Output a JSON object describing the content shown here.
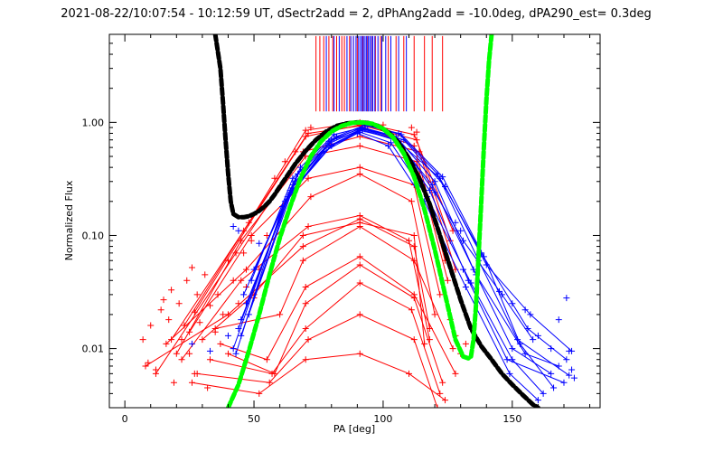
{
  "chart_data": {
    "type": "line",
    "title": "2021-08-22/10:07:54 - 10:12:59 UT, dSectr2add = 2, dPhAng2add = -10.0deg, dPA290_est=  0.3deg",
    "xlabel": "PA [deg]",
    "ylabel": "Normalized Flux",
    "xlim": [
      -6,
      184
    ],
    "ylim": [
      0.003,
      6.0
    ],
    "yscale": "log",
    "xticks": [
      0,
      50,
      100,
      150
    ],
    "xtick_labels": [
      "0",
      "50",
      "100",
      "150"
    ],
    "yticks": [
      0.01,
      0.1,
      1.0
    ],
    "ytick_labels": [
      "0.01",
      "0.10",
      "1.00"
    ],
    "grid": false,
    "legend": "none",
    "colors": {
      "red": "#ff0000",
      "blue": "#0000ff",
      "black_fit": "#000000",
      "green_fit": "#00ff00",
      "axes": "#000000",
      "background": "#ffffff"
    },
    "series": [
      {
        "color": "red",
        "style": "spectra-lines",
        "curves": [
          {
            "x": [
              23,
              48,
              70,
              91,
              112,
              127
            ],
            "y": [
              0.016,
              0.13,
              0.85,
              1.0,
              0.78,
              0.11
            ]
          },
          {
            "x": [
              18,
              46,
              70,
              91,
              113,
              126
            ],
            "y": [
              0.012,
              0.11,
              0.75,
              0.95,
              0.7,
              0.09
            ]
          },
          {
            "x": [
              27,
              51,
              71,
              91,
              112,
              124
            ],
            "y": [
              0.021,
              0.16,
              0.8,
              0.93,
              0.62,
              0.06
            ]
          },
          {
            "x": [
              12,
              43,
              69,
              91,
              114,
              128
            ],
            "y": [
              0.006,
              0.07,
              0.55,
              0.75,
              0.55,
              0.05
            ]
          },
          {
            "x": [
              20,
              45,
              70,
              91,
              113,
              125
            ],
            "y": [
              0.009,
              0.09,
              0.5,
              0.62,
              0.45,
              0.04
            ]
          },
          {
            "x": [
              25,
              49,
              71,
              91,
              112,
              122
            ],
            "y": [
              0.014,
              0.1,
              0.32,
              0.4,
              0.28,
              0.03
            ]
          },
          {
            "x": [
              16,
              47,
              72,
              91,
              111,
              120
            ],
            "y": [
              0.011,
              0.05,
              0.22,
              0.35,
              0.2,
              0.02
            ]
          },
          {
            "x": [
              22,
              45,
              71,
              91,
              110,
              118
            ],
            "y": [
              0.008,
              0.04,
              0.12,
              0.15,
              0.09,
              0.012
            ]
          },
          {
            "x": [
              8,
              40,
              69,
              91,
              112,
              118
            ],
            "y": [
              0.007,
              0.02,
              0.08,
              0.14,
              0.08,
              0.015
            ]
          },
          {
            "x": [
              30,
              50,
              69,
              91,
              112,
              116
            ],
            "y": [
              0.012,
              0.03,
              0.1,
              0.13,
              0.1,
              0.011
            ]
          },
          {
            "x": [
              35,
              60,
              69,
              91,
              112,
              127
            ],
            "y": [
              0.015,
              0.02,
              0.06,
              0.12,
              0.06,
              0.01
            ]
          },
          {
            "x": [
              37,
              55,
              70,
              91,
              112,
              128
            ],
            "y": [
              0.011,
              0.008,
              0.035,
              0.065,
              0.03,
              0.006
            ]
          },
          {
            "x": [
              40,
              58,
              70,
              91,
              112,
              123
            ],
            "y": [
              0.009,
              0.006,
              0.025,
              0.055,
              0.028,
              0.005
            ]
          },
          {
            "x": [
              33,
              57,
              70,
              91,
              111,
              122
            ],
            "y": [
              0.008,
              0.006,
              0.015,
              0.038,
              0.022,
              0.004
            ]
          },
          {
            "x": [
              28,
              56,
              71,
              91,
              112,
              121
            ],
            "y": [
              0.006,
              0.005,
              0.012,
              0.02,
              0.012,
              0.003
            ]
          },
          {
            "x": [
              26,
              52,
              70,
              91,
              110,
              124
            ],
            "y": [
              0.005,
              0.004,
              0.008,
              0.009,
              0.006,
              0.0035
            ]
          }
        ],
        "scatter": [
          {
            "x": 7,
            "y": 0.012
          },
          {
            "x": 9,
            "y": 0.0075
          },
          {
            "x": 10,
            "y": 0.016
          },
          {
            "x": 12,
            "y": 0.0065
          },
          {
            "x": 14,
            "y": 0.022
          },
          {
            "x": 15,
            "y": 0.027
          },
          {
            "x": 17,
            "y": 0.018
          },
          {
            "x": 18,
            "y": 0.033
          },
          {
            "x": 19,
            "y": 0.005
          },
          {
            "x": 21,
            "y": 0.025
          },
          {
            "x": 22,
            "y": 0.012
          },
          {
            "x": 24,
            "y": 0.04
          },
          {
            "x": 25,
            "y": 0.009
          },
          {
            "x": 26,
            "y": 0.052
          },
          {
            "x": 27,
            "y": 0.006
          },
          {
            "x": 28,
            "y": 0.03
          },
          {
            "x": 29,
            "y": 0.017
          },
          {
            "x": 31,
            "y": 0.045
          },
          {
            "x": 32,
            "y": 0.0045
          },
          {
            "x": 33,
            "y": 0.024
          },
          {
            "x": 35,
            "y": 0.014
          },
          {
            "x": 36,
            "y": 0.03
          },
          {
            "x": 38,
            "y": 0.02
          },
          {
            "x": 40,
            "y": 0.06
          },
          {
            "x": 42,
            "y": 0.04
          },
          {
            "x": 44,
            "y": 0.025
          },
          {
            "x": 46,
            "y": 0.07
          },
          {
            "x": 47,
            "y": 0.035
          },
          {
            "x": 49,
            "y": 0.09
          },
          {
            "x": 50,
            "y": 0.028
          },
          {
            "x": 52,
            "y": 0.05
          },
          {
            "x": 55,
            "y": 0.1
          },
          {
            "x": 58,
            "y": 0.32
          },
          {
            "x": 62,
            "y": 0.45
          },
          {
            "x": 66,
            "y": 0.55
          },
          {
            "x": 72,
            "y": 0.9
          },
          {
            "x": 100,
            "y": 0.95
          },
          {
            "x": 111,
            "y": 0.9
          },
          {
            "x": 113,
            "y": 0.82
          },
          {
            "x": 126,
            "y": 0.018
          },
          {
            "x": 128,
            "y": 0.013
          },
          {
            "x": 130,
            "y": 0.009
          },
          {
            "x": 132,
            "y": 0.011
          }
        ]
      },
      {
        "color": "blue",
        "style": "spectra-lines",
        "curves": [
          {
            "x": [
              45,
              65,
              80,
              92,
              105,
              120,
              135,
              150,
              165
            ],
            "y": [
              0.013,
              0.28,
              0.7,
              0.9,
              0.75,
              0.3,
              0.05,
              0.01,
              0.006
            ]
          },
          {
            "x": [
              42,
              62,
              78,
              91,
              104,
              118,
              133,
              148,
              170
            ],
            "y": [
              0.01,
              0.2,
              0.6,
              0.85,
              0.72,
              0.25,
              0.04,
              0.008,
              0.005
            ]
          },
          {
            "x": [
              48,
              67,
              82,
              93,
              106,
              121,
              137,
              152,
              172
            ],
            "y": [
              0.02,
              0.35,
              0.75,
              0.95,
              0.8,
              0.35,
              0.06,
              0.012,
              0.0058
            ]
          },
          {
            "x": [
              46,
              64,
              79,
              92,
              105,
              119,
              136,
              155,
              168
            ],
            "y": [
              0.03,
              0.25,
              0.65,
              0.88,
              0.7,
              0.28,
              0.045,
              0.009,
              0.007
            ]
          },
          {
            "x": [
              44,
              63,
              80,
              91,
              103,
              117,
              134,
              150,
              162
            ],
            "y": [
              0.015,
              0.22,
              0.62,
              0.82,
              0.66,
              0.22,
              0.038,
              0.008,
              0.004
            ]
          },
          {
            "x": [
              50,
              68,
              81,
              92,
              104,
              122,
              138,
              156,
              171
            ],
            "y": [
              0.05,
              0.4,
              0.78,
              0.9,
              0.74,
              0.32,
              0.07,
              0.015,
              0.008
            ]
          },
          {
            "x": [
              43,
              61,
              77,
              90,
              102,
              116,
              132,
              149,
              160
            ],
            "y": [
              0.009,
              0.18,
              0.55,
              0.8,
              0.62,
              0.2,
              0.035,
              0.006,
              0.0035
            ]
          },
          {
            "x": [
              47,
              66,
              81,
              94,
              107,
              123,
              139,
              153,
              166
            ],
            "y": [
              0.025,
              0.3,
              0.72,
              0.93,
              0.78,
              0.33,
              0.065,
              0.011,
              0.0045
            ]
          },
          {
            "x": [
              49,
              65,
              79,
              93,
              108,
              124,
              140,
              157,
              173
            ],
            "y": [
              0.04,
              0.32,
              0.68,
              0.87,
              0.7,
              0.27,
              0.055,
              0.02,
              0.0095
            ]
          },
          {
            "x": [
              45,
              64,
              80,
              92,
              106,
              120,
              131,
              146,
              158
            ],
            "y": [
              0.018,
              0.24,
              0.63,
              0.86,
              0.68,
              0.24,
              0.09,
              0.03,
              0.012
            ]
          }
        ],
        "scatter": [
          {
            "x": 42,
            "y": 0.12
          },
          {
            "x": 44,
            "y": 0.11
          },
          {
            "x": 26,
            "y": 0.011
          },
          {
            "x": 33,
            "y": 0.0095
          },
          {
            "x": 40,
            "y": 0.013
          },
          {
            "x": 52,
            "y": 0.085
          },
          {
            "x": 128,
            "y": 0.13
          },
          {
            "x": 130,
            "y": 0.11
          },
          {
            "x": 131,
            "y": 0.05
          },
          {
            "x": 145,
            "y": 0.032
          },
          {
            "x": 150,
            "y": 0.025
          },
          {
            "x": 160,
            "y": 0.013
          },
          {
            "x": 165,
            "y": 0.01
          },
          {
            "x": 171,
            "y": 0.028
          },
          {
            "x": 172,
            "y": 0.0095
          },
          {
            "x": 173,
            "y": 0.0065
          },
          {
            "x": 174,
            "y": 0.0055
          },
          {
            "x": 168,
            "y": 0.018
          },
          {
            "x": 155,
            "y": 0.022
          }
        ]
      },
      {
        "color": "black_fit",
        "style": "thick-dashed",
        "x": [
          35,
          37,
          38,
          39,
          40,
          41,
          42,
          44,
          46,
          48,
          50,
          52,
          54,
          56,
          58,
          60,
          63,
          66,
          70,
          74,
          78,
          82,
          86,
          90,
          94,
          98,
          102,
          106,
          110,
          114,
          118,
          122,
          126,
          130,
          134,
          138,
          142,
          146,
          150,
          154,
          158,
          160
        ],
        "y": [
          6.0,
          3.0,
          1.5,
          0.7,
          0.35,
          0.2,
          0.155,
          0.145,
          0.145,
          0.148,
          0.155,
          0.165,
          0.18,
          0.2,
          0.23,
          0.27,
          0.34,
          0.43,
          0.56,
          0.7,
          0.83,
          0.93,
          0.98,
          1.0,
          0.99,
          0.93,
          0.82,
          0.66,
          0.48,
          0.32,
          0.19,
          0.1,
          0.052,
          0.027,
          0.015,
          0.0105,
          0.008,
          0.006,
          0.0048,
          0.0039,
          0.0032,
          0.003
        ]
      },
      {
        "color": "green_fit",
        "style": "thick-dashed",
        "x": [
          40,
          44,
          48,
          52,
          56,
          60,
          64,
          68,
          72,
          76,
          80,
          84,
          88,
          92,
          96,
          100,
          104,
          108,
          112,
          116,
          120,
          124,
          128,
          131,
          133,
          134,
          135,
          136,
          137,
          138,
          139,
          140,
          141,
          142
        ],
        "y": [
          0.003,
          0.0048,
          0.0095,
          0.02,
          0.045,
          0.095,
          0.18,
          0.32,
          0.5,
          0.68,
          0.83,
          0.93,
          0.99,
          1.0,
          0.97,
          0.88,
          0.73,
          0.53,
          0.33,
          0.17,
          0.075,
          0.03,
          0.012,
          0.0085,
          0.0082,
          0.0085,
          0.012,
          0.025,
          0.07,
          0.2,
          0.6,
          1.6,
          3.5,
          6.0
        ]
      }
    ],
    "top_markers": [
      {
        "color": "red",
        "x": [
          74,
          75.5,
          77,
          79,
          80.5,
          82,
          84,
          85,
          87,
          88.5,
          90,
          92,
          94,
          95.5,
          97,
          99,
          102,
          105,
          108,
          112,
          116,
          119,
          123
        ]
      },
      {
        "color": "blue",
        "x": [
          78,
          81,
          83,
          86,
          87.5,
          88.5,
          89.5,
          90.5,
          91.2,
          91.8,
          92.4,
          93,
          93.6,
          94.2,
          94.8,
          95.4,
          96,
          96.8,
          98,
          99.5,
          101,
          103,
          106,
          109
        ]
      }
    ],
    "top_marker_y_range": [
      1.25,
      5.8
    ]
  }
}
